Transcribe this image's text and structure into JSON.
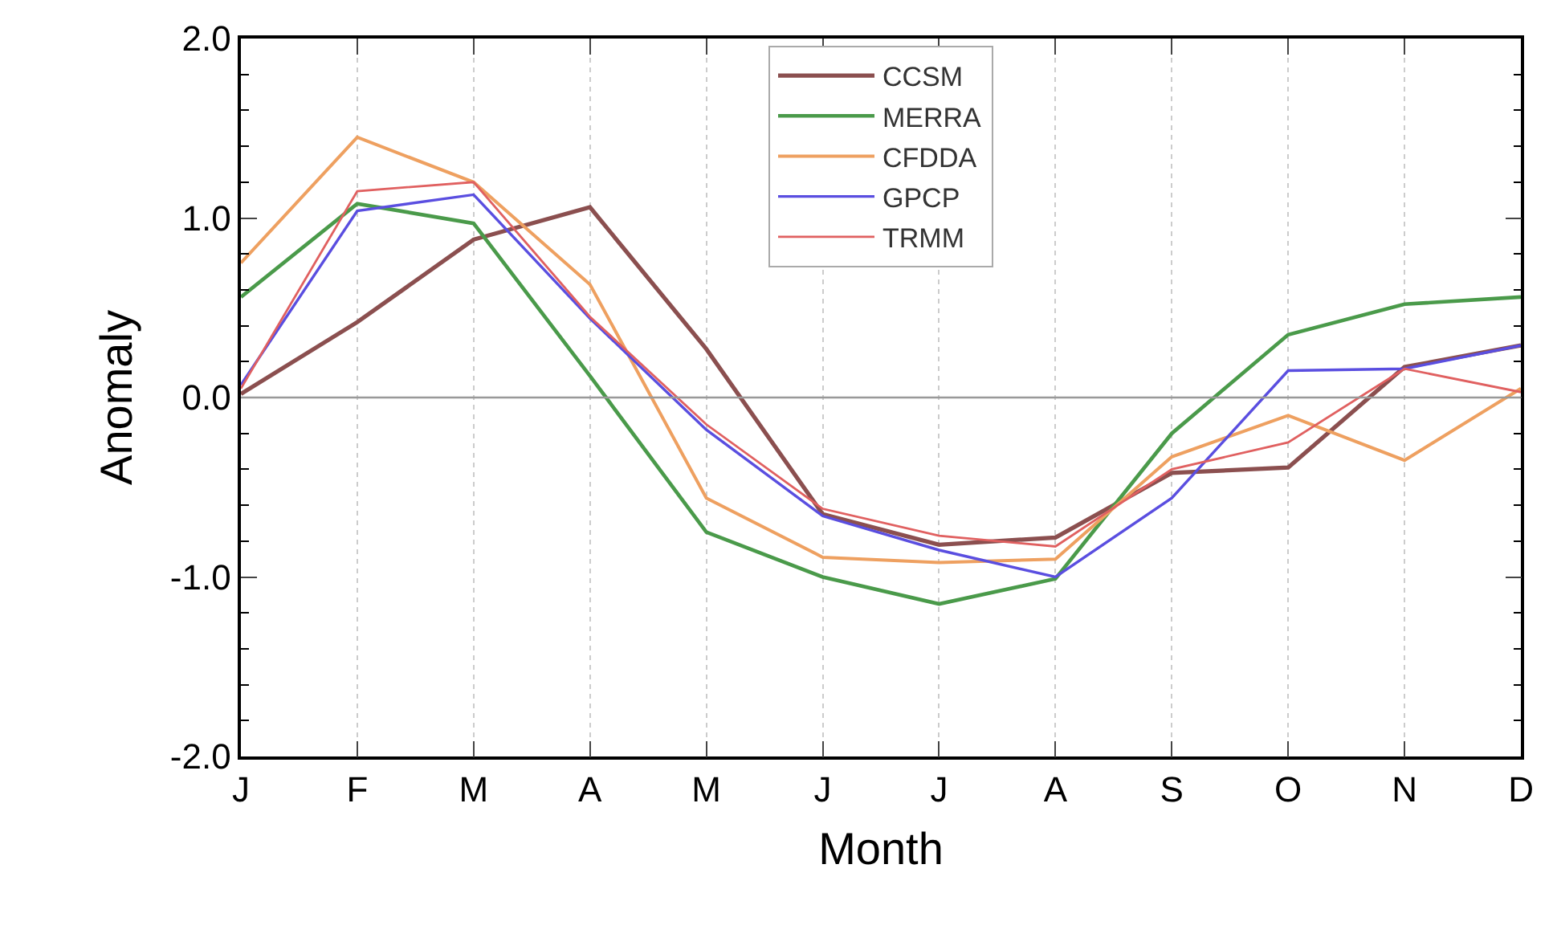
{
  "chart_data": {
    "type": "line",
    "xlabel": "Month",
    "ylabel": "Anomaly",
    "categories": [
      "J",
      "F",
      "M",
      "A",
      "M",
      "J",
      "J",
      "A",
      "S",
      "O",
      "N",
      "D"
    ],
    "series": [
      {
        "name": "CCSM",
        "color": "#8b4f4f",
        "values": [
          0.02,
          0.42,
          0.88,
          1.06,
          0.27,
          -0.65,
          -0.82,
          -0.78,
          -0.42,
          -0.39,
          0.17,
          0.29
        ]
      },
      {
        "name": "MERRA",
        "color": "#4a9a4a",
        "values": [
          0.56,
          1.08,
          0.97,
          0.12,
          -0.75,
          -1.0,
          -1.15,
          -1.01,
          -0.2,
          0.35,
          0.52,
          0.56
        ]
      },
      {
        "name": "CFDDA",
        "color": "#eea060",
        "values": [
          0.75,
          1.45,
          1.2,
          0.63,
          -0.56,
          -0.89,
          -0.92,
          -0.9,
          -0.33,
          -0.1,
          -0.35,
          0.05
        ]
      },
      {
        "name": "GPCP",
        "color": "#5a4ee0",
        "values": [
          0.07,
          1.04,
          1.13,
          0.44,
          -0.18,
          -0.66,
          -0.85,
          -1.0,
          -0.56,
          0.15,
          0.16,
          0.29
        ]
      },
      {
        "name": "TRMM",
        "color": "#e06060",
        "values": [
          0.05,
          1.15,
          1.2,
          0.45,
          -0.15,
          -0.62,
          -0.77,
          -0.83,
          -0.4,
          -0.25,
          0.16,
          0.03
        ]
      }
    ],
    "ylim": [
      -2.0,
      2.0
    ],
    "yticks": [
      {
        "value": -2.0,
        "label": "-2.0"
      },
      {
        "value": -1.0,
        "label": "-1.0"
      },
      {
        "value": 0.0,
        "label": "0.0"
      },
      {
        "value": 1.0,
        "label": "1.0"
      },
      {
        "value": 2.0,
        "label": "2.0"
      }
    ],
    "ref_lines": [
      {
        "axis": "y",
        "value": 0,
        "color": "#999999"
      }
    ],
    "grid": "x",
    "legend": "top",
    "marker": "none",
    "line_style": "solid"
  }
}
